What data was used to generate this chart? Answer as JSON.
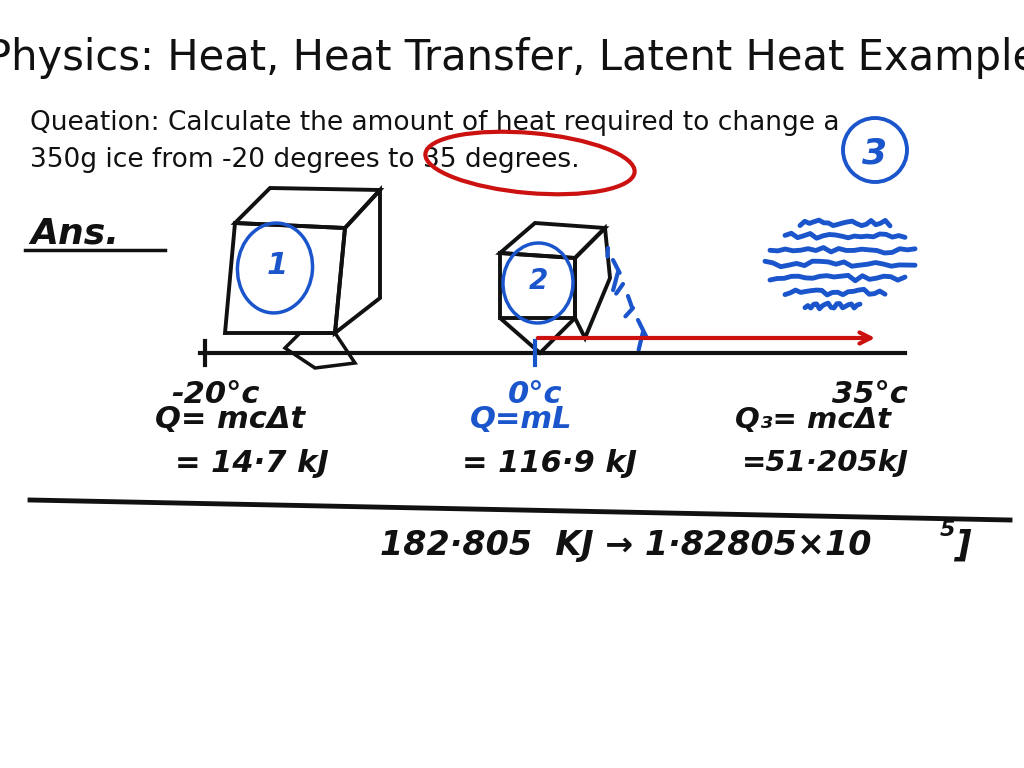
{
  "title": "Physics: Heat, Heat Transfer, Latent Heat Example",
  "question_line1": "Queation: Calculate the amount of heat required to change a",
  "question_line2": "350g ice from -20 degrees to 35 degrees.",
  "bg_color": "#ffffff",
  "title_fontsize": 30,
  "question_fontsize": 19,
  "ans_text": "Ans.",
  "label_neg20": "-20°c",
  "label_0": "0°c",
  "label_35": "35°c",
  "eq1_line1": "Q= mcΔt",
  "eq1_line2": "= 14·7 kJ",
  "eq2_line1": "Q=mL",
  "eq2_line2": "= 116·9 kJ",
  "eq3_line1": "Q₃= mcΔt",
  "eq3_line2": "=51·205kJ",
  "total_line": "182·805  KJ → 1·82805×10",
  "superscript": "5",
  "bracket": "]",
  "num1": "1",
  "num2": "2",
  "num3": "3",
  "black": "#111111",
  "blue": "#1a55cc",
  "red": "#cc1111"
}
